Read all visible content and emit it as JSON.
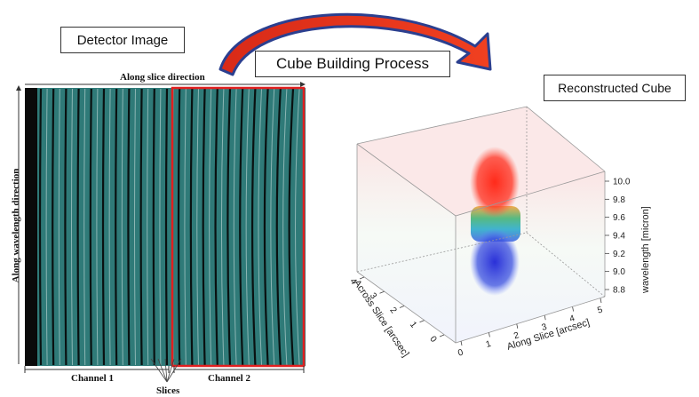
{
  "labels": {
    "detector_image": "Detector Image",
    "cube_building": "Cube Building Process",
    "reconstructed_cube": "Reconstructed Cube"
  },
  "detector": {
    "top_label": "Along slice direction",
    "left_label": "Along wavelength direction",
    "channel1": "Channel 1",
    "channel2": "Channel 2",
    "slices": "Slices"
  },
  "cube": {
    "wavelength_title": "wavelength [micron]",
    "wavelength_ticks": [
      "10.0",
      "9.8",
      "9.6",
      "9.4",
      "9.2",
      "9.0",
      "8.8"
    ],
    "along_title": "Along Slice [arcsec]",
    "along_ticks": [
      "0",
      "1",
      "2",
      "3",
      "4",
      "5"
    ],
    "across_title": "Across Slice [arcsec]",
    "across_ticks": [
      "0",
      "1",
      "2",
      "3",
      "4"
    ]
  },
  "colors": {
    "arrow_fill": "#e8321e",
    "arrow_edge": "#2b3f8f",
    "channel2_border": "#e02020",
    "detector_bg": "#2f7a78"
  }
}
